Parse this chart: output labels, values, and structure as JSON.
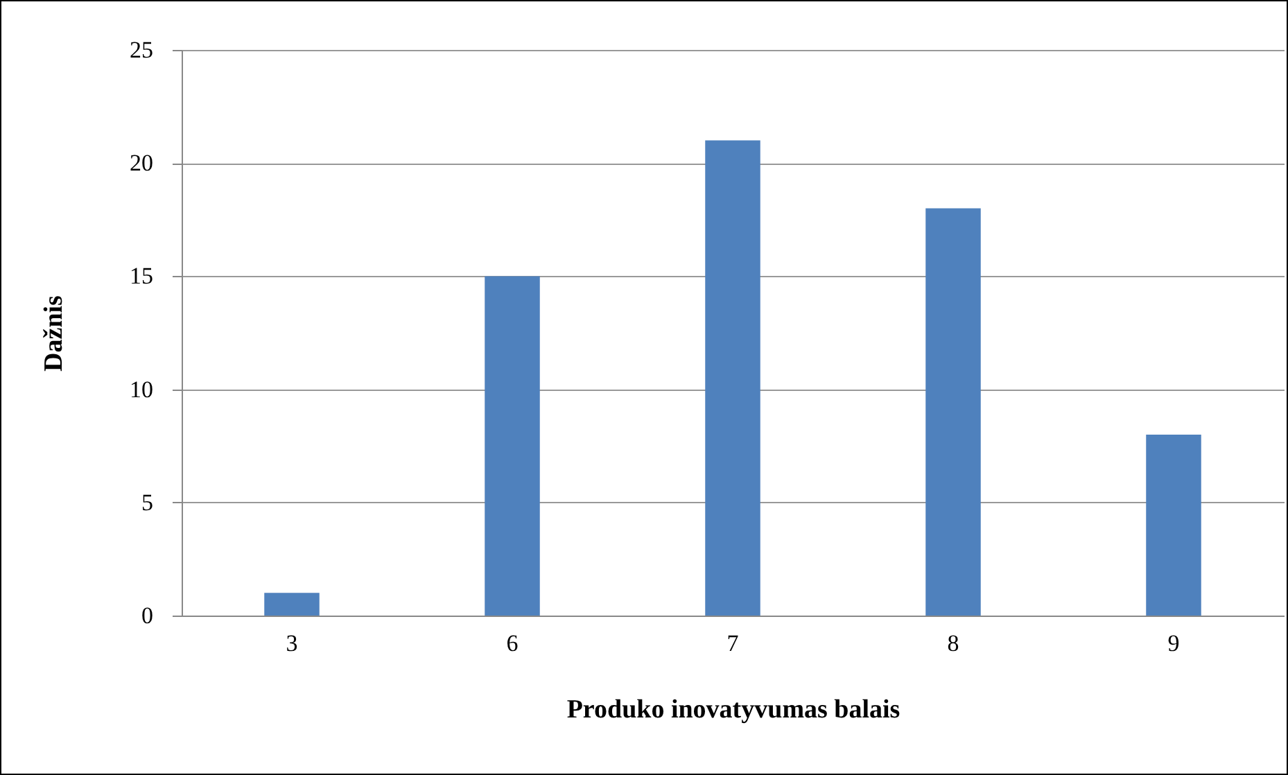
{
  "chart_data": {
    "type": "bar",
    "xlabel": "Produko inovatyvumas balais",
    "ylabel": "Dažnis",
    "categories": [
      "3",
      "6",
      "7",
      "8",
      "9"
    ],
    "values": [
      1,
      15,
      21,
      18,
      8
    ],
    "color": "#4f81bd",
    "ylim": [
      0,
      25
    ],
    "yticks": [
      0,
      5,
      10,
      15,
      20,
      25
    ],
    "grid": "y"
  }
}
